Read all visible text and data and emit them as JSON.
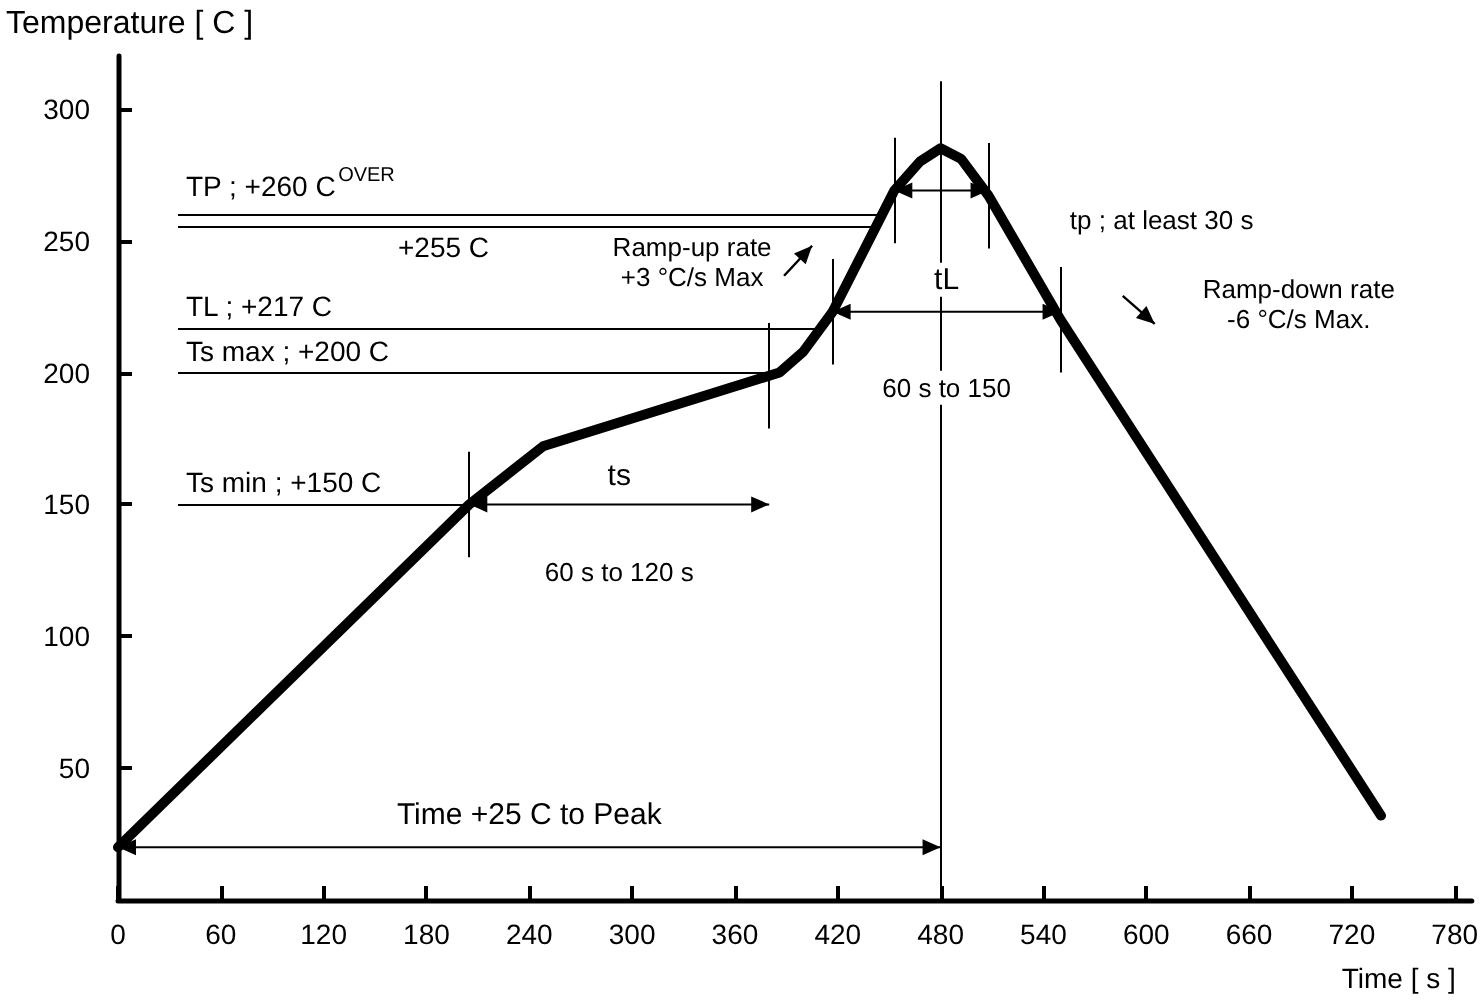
{
  "chart_data": {
    "type": "line",
    "ylabel": "Temperature [ C ]",
    "xlabel": "Time [ s ]",
    "x": [
      0,
      205,
      248,
      386,
      400,
      417,
      435,
      453,
      468,
      480,
      492,
      508,
      550,
      737
    ],
    "values": [
      20,
      150,
      172,
      200,
      208,
      223,
      246,
      269,
      280,
      285,
      281,
      267,
      220,
      32
    ],
    "color": "#000000",
    "marker": "none",
    "line_style": "solid",
    "grid": false,
    "xlim": [
      0,
      790
    ],
    "xticks": [
      0,
      60,
      120,
      180,
      240,
      300,
      360,
      420,
      480,
      540,
      600,
      660,
      720,
      780
    ],
    "ylim": [
      0,
      320
    ],
    "yticks": [
      50,
      100,
      150,
      200,
      250,
      300
    ],
    "ref_lines": [
      {
        "axis": "y",
        "value": 260,
        "label": "TP ; +260 C$^{OVER}$"
      },
      {
        "axis": "y",
        "value": 255,
        "label": "+255 C"
      },
      {
        "axis": "y",
        "value": 217,
        "label": "TL ; +217 C"
      },
      {
        "axis": "y",
        "value": 200,
        "label": "Ts max ; +200 C"
      },
      {
        "axis": "y",
        "value": 150,
        "label": "Ts min ; +150 C"
      },
      {
        "axis": "x",
        "value": 205
      },
      {
        "axis": "x",
        "value": 380
      },
      {
        "axis": "x",
        "value": 417
      },
      {
        "axis": "x",
        "value": 550
      },
      {
        "axis": "x",
        "value": 453
      },
      {
        "axis": "x",
        "value": 508
      },
      {
        "axis": "x",
        "value": 480
      }
    ],
    "annotations": [
      "ts",
      "60 s to 120 s",
      "tL",
      "60 s to 150",
      "tp ; at least 30 s",
      "Time +25 C to Peak",
      "Ramp-up rate\n+3 °C/s Max",
      "Ramp-down rate\n-6 °C/s Max."
    ]
  }
}
